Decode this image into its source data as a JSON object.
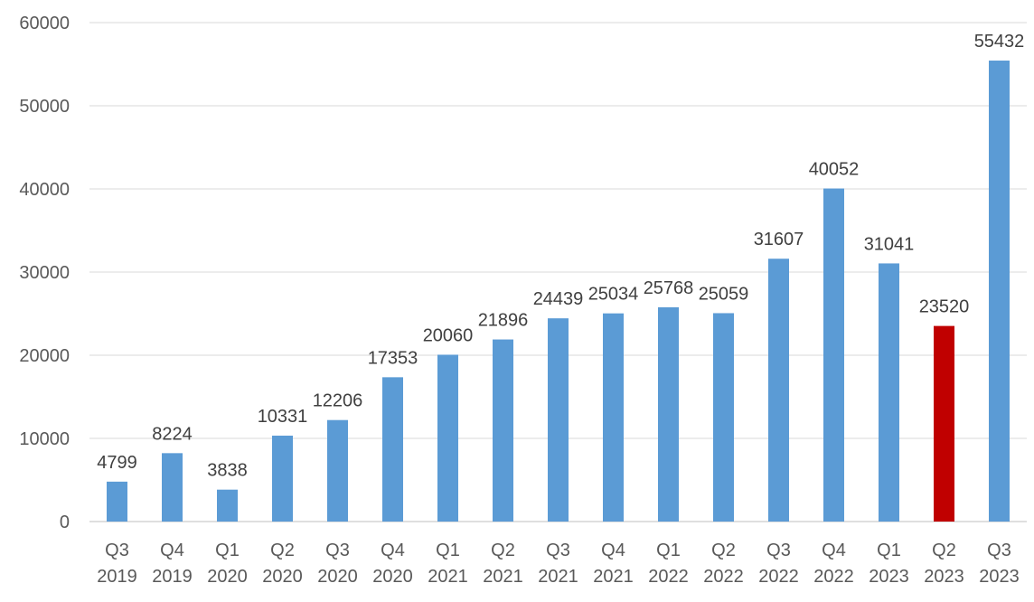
{
  "chart_data": {
    "type": "bar",
    "categories": [
      [
        "Q3",
        "2019"
      ],
      [
        "Q4",
        "2019"
      ],
      [
        "Q1",
        "2020"
      ],
      [
        "Q2",
        "2020"
      ],
      [
        "Q3",
        "2020"
      ],
      [
        "Q4",
        "2020"
      ],
      [
        "Q1",
        "2021"
      ],
      [
        "Q2",
        "2021"
      ],
      [
        "Q3",
        "2021"
      ],
      [
        "Q4",
        "2021"
      ],
      [
        "Q1",
        "2022"
      ],
      [
        "Q2",
        "2022"
      ],
      [
        "Q3",
        "2022"
      ],
      [
        "Q4",
        "2022"
      ],
      [
        "Q1",
        "2023"
      ],
      [
        "Q2",
        "2023"
      ],
      [
        "Q3",
        "2023"
      ]
    ],
    "values": [
      4799,
      8224,
      3838,
      10331,
      12206,
      17353,
      20060,
      21896,
      24439,
      25034,
      25768,
      25059,
      31607,
      40052,
      31041,
      23520,
      55432
    ],
    "data_labels": [
      "4799",
      "8224",
      "3838",
      "10331",
      "12206",
      "17353",
      "20060",
      "21896",
      "24439",
      "25034",
      "25768",
      "25059",
      "31607",
      "40052",
      "31041",
      "23520",
      "55432"
    ],
    "highlight_index": 15,
    "ylim": [
      0,
      60000
    ],
    "yticks": [
      "0",
      "10000",
      "20000",
      "30000",
      "40000",
      "50000",
      "60000"
    ],
    "grid": true,
    "legend": "none",
    "colors": {
      "bar": "#5b9bd5",
      "highlight": "#c00000"
    }
  }
}
